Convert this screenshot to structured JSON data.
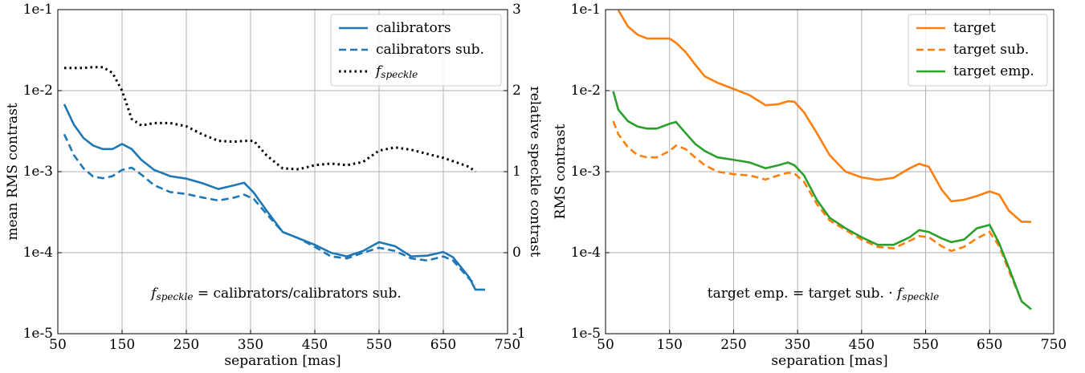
{
  "chart_data": [
    {
      "type": "line",
      "ylabel": "mean RMS contrast",
      "y2label": "relative speckle contrast",
      "xlabel": "separation [mas]",
      "annotation": "fspeckle = calibrators/calibrators sub.",
      "log_y": true,
      "grid": true,
      "legend": "upper right",
      "xlim": [
        50,
        750
      ],
      "xticks": [
        50,
        150,
        250,
        350,
        450,
        550,
        650,
        750
      ],
      "ylim": [
        1e-05,
        0.1
      ],
      "yticks": [
        {
          "value": 0.1,
          "label": "1e-1"
        },
        {
          "value": 0.01,
          "label": "1e-2"
        },
        {
          "value": 0.001,
          "label": "1e-3"
        },
        {
          "value": 0.0001,
          "label": "1e-4"
        },
        {
          "value": 1e-05,
          "label": "1e-5"
        }
      ],
      "y2lim": [
        -1,
        3
      ],
      "y2ticks": [
        3,
        2,
        1,
        0,
        -1
      ],
      "x": [
        60,
        75,
        90,
        105,
        120,
        135,
        150,
        165,
        180,
        200,
        225,
        250,
        275,
        300,
        325,
        340,
        355,
        375,
        400,
        425,
        450,
        475,
        500,
        525,
        550,
        575,
        600,
        625,
        650,
        665,
        690,
        700,
        715
      ],
      "series": [
        {
          "name": "calibrators",
          "color": "#1f77b4",
          "style": "solid",
          "values": [
            0.0068,
            0.0038,
            0.0026,
            0.0021,
            0.0019,
            0.0019,
            0.0022,
            0.0019,
            0.0014,
            0.00105,
            0.00088,
            0.00082,
            0.00072,
            0.00061,
            0.00068,
            0.00073,
            0.00055,
            0.00033,
            0.00018,
            0.00015,
            0.000125,
            0.0001,
            9e-05,
            0.000105,
            0.000135,
            0.00012,
            9e-05,
            9.2e-05,
            0.000102,
            8.8e-05,
            5e-05,
            3.5e-05,
            3.5e-05
          ]
        },
        {
          "name": "calibrators sub.",
          "color": "#1f77b4",
          "style": "dashed",
          "values": [
            0.0029,
            0.0016,
            0.0011,
            0.00087,
            0.00083,
            0.00088,
            0.00105,
            0.00112,
            0.00092,
            0.00068,
            0.00056,
            0.00053,
            0.00048,
            0.00044,
            0.00048,
            0.00052,
            0.00046,
            0.0003,
            0.00018,
            0.00015,
            0.000118,
            9e-05,
            8.5e-05,
            0.0001,
            0.000115,
            0.000105,
            8.5e-05,
            8e-05,
            9e-05,
            8e-05,
            4.8e-05,
            4e-05,
            null
          ]
        },
        {
          "name": "fspeckle",
          "color": "#000000",
          "style": "dotted",
          "axis": "y2",
          "values": [
            2.28,
            2.28,
            2.28,
            2.29,
            2.29,
            2.22,
            2.0,
            1.65,
            1.57,
            1.6,
            1.6,
            1.56,
            1.46,
            1.38,
            1.37,
            1.38,
            1.38,
            1.2,
            1.04,
            1.03,
            1.08,
            1.1,
            1.08,
            1.12,
            1.26,
            1.3,
            1.27,
            1.22,
            1.17,
            1.13,
            1.06,
            1.0,
            null
          ]
        }
      ]
    },
    {
      "type": "line",
      "ylabel": "RMS contrast",
      "xlabel": "separation [mas]",
      "annotation": "target emp. = target sub. · fspeckle",
      "log_y": true,
      "grid": true,
      "legend": "upper right",
      "xlim": [
        50,
        750
      ],
      "xticks": [
        50,
        150,
        250,
        350,
        450,
        550,
        650,
        750
      ],
      "ylim": [
        1e-05,
        0.1
      ],
      "yticks": [
        {
          "value": 0.1,
          "label": "1e-1"
        },
        {
          "value": 0.01,
          "label": "1e-2"
        },
        {
          "value": 0.001,
          "label": "1e-3"
        },
        {
          "value": 0.0001,
          "label": "1e-4"
        },
        {
          "value": 1e-05,
          "label": "1e-5"
        }
      ],
      "x": [
        62,
        70,
        85,
        100,
        115,
        130,
        150,
        160,
        175,
        190,
        205,
        225,
        250,
        275,
        300,
        320,
        335,
        345,
        360,
        380,
        400,
        425,
        450,
        475,
        500,
        525,
        540,
        555,
        575,
        590,
        610,
        630,
        650,
        665,
        680,
        700,
        715
      ],
      "series": [
        {
          "name": "target",
          "color": "#ff7f0e",
          "style": "solid",
          "values": [
            null,
            0.098,
            0.062,
            0.049,
            0.044,
            0.044,
            0.044,
            0.039,
            0.03,
            0.021,
            0.015,
            0.0125,
            0.0105,
            0.0088,
            0.0066,
            0.0068,
            0.0074,
            0.0073,
            0.0054,
            0.003,
            0.0016,
            0.001,
            0.00085,
            0.00079,
            0.00084,
            0.0011,
            0.00125,
            0.00115,
            0.0006,
            0.00043,
            0.00045,
            0.0005,
            0.00057,
            0.00052,
            0.00033,
            0.00024,
            0.00024
          ]
        },
        {
          "name": "target sub.",
          "color": "#ff7f0e",
          "style": "dashed",
          "values": [
            0.0042,
            0.0029,
            0.002,
            0.0016,
            0.0015,
            0.0015,
            0.0018,
            0.0021,
            0.0019,
            0.0015,
            0.0012,
            0.001,
            0.00093,
            0.0009,
            0.0008,
            0.0009,
            0.00097,
            0.00095,
            0.00075,
            0.0004,
            0.00025,
            0.00019,
            0.000145,
            0.000118,
            0.000113,
            0.00014,
            0.00016,
            0.000155,
            0.00012,
            0.000105,
            0.000118,
            0.00015,
            0.00018,
            0.00012,
            6e-05,
            2.5e-05,
            null
          ]
        },
        {
          "name": "target emp.",
          "color": "#2ca02c",
          "style": "solid",
          "values": [
            0.0098,
            0.0058,
            0.0042,
            0.0036,
            0.0034,
            0.0034,
            0.0039,
            0.0041,
            0.003,
            0.0022,
            0.0018,
            0.0015,
            0.0014,
            0.0013,
            0.0011,
            0.0012,
            0.0013,
            0.0012,
            0.0009,
            0.00045,
            0.00027,
            0.0002,
            0.000155,
            0.000125,
            0.000125,
            0.000155,
            0.00019,
            0.00018,
            0.00015,
            0.000135,
            0.000145,
            0.0002,
            0.00022,
            0.00013,
            6.5e-05,
            2.5e-05,
            2e-05
          ]
        }
      ]
    }
  ]
}
